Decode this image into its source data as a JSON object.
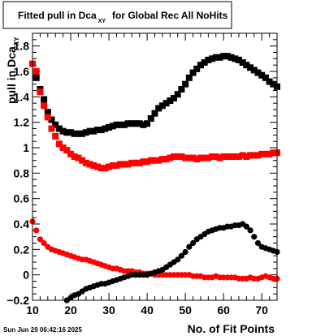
{
  "chart_data": {
    "type": "scatter",
    "title": "Fitted pull in Dca",
    "title_sub": "XY",
    "title_suffix": "for Global Rec All NoHits",
    "xlabel": "No. of Fit Points",
    "ylabel": "pull in Dca",
    "ylabel_sub": "XY",
    "xlim": [
      10,
      74
    ],
    "ylim": [
      -0.2,
      1.9
    ],
    "xticks": [
      10,
      20,
      30,
      40,
      50,
      60,
      70
    ],
    "xtick_labels": [
      "10",
      "20",
      "30",
      "40",
      "50",
      "60",
      "70"
    ],
    "yticks": [
      -0.2,
      0,
      0.2,
      0.4,
      0.6,
      0.8,
      1,
      1.2,
      1.4,
      1.6,
      1.8
    ],
    "ytick_labels": [
      "−0.2",
      "0",
      "0.2",
      "0.4",
      "0.6",
      "0.8",
      "1",
      "1.2",
      "1.4",
      "1.6",
      "1.8"
    ],
    "grid": false,
    "timestamp": "Sun Jun 29 06:42:16 2025",
    "colors": {
      "red": "#ff0000",
      "black": "#000000"
    },
    "series": [
      {
        "marker": "square",
        "color": "#000000",
        "x": [
          11,
          12,
          13,
          14,
          15,
          16,
          17,
          18,
          19,
          20,
          21,
          22,
          23,
          24,
          25,
          26,
          27,
          28,
          29,
          30,
          31,
          32,
          33,
          34,
          35,
          36,
          37,
          38,
          39,
          40,
          41,
          42,
          43,
          44,
          45,
          46,
          47,
          48,
          49,
          50,
          51,
          52,
          53,
          54,
          55,
          56,
          57,
          58,
          59,
          60,
          61,
          62,
          63,
          64,
          65,
          66,
          67,
          68,
          69,
          70,
          71,
          72,
          73,
          74
        ],
        "y": [
          1.55,
          1.46,
          1.38,
          1.28,
          1.22,
          1.18,
          1.15,
          1.13,
          1.12,
          1.12,
          1.11,
          1.11,
          1.11,
          1.12,
          1.13,
          1.13,
          1.14,
          1.14,
          1.15,
          1.16,
          1.17,
          1.18,
          1.18,
          1.18,
          1.19,
          1.19,
          1.19,
          1.19,
          1.18,
          1.19,
          1.23,
          1.27,
          1.31,
          1.33,
          1.35,
          1.37,
          1.39,
          1.42,
          1.46,
          1.5,
          1.55,
          1.59,
          1.62,
          1.65,
          1.67,
          1.69,
          1.7,
          1.71,
          1.71,
          1.72,
          1.72,
          1.71,
          1.7,
          1.69,
          1.67,
          1.65,
          1.63,
          1.61,
          1.59,
          1.57,
          1.55,
          1.52,
          1.5,
          1.48
        ]
      },
      {
        "marker": "square",
        "color": "#ff0000",
        "x": [
          10,
          11,
          12,
          13,
          14,
          15,
          16,
          17,
          18,
          19,
          20,
          21,
          22,
          23,
          24,
          25,
          26,
          27,
          28,
          29,
          30,
          31,
          32,
          33,
          34,
          35,
          36,
          37,
          38,
          39,
          40,
          41,
          42,
          43,
          44,
          45,
          46,
          47,
          48,
          49,
          50,
          51,
          52,
          53,
          54,
          55,
          56,
          57,
          58,
          59,
          60,
          61,
          62,
          63,
          64,
          65,
          66,
          67,
          68,
          69,
          70,
          71,
          72,
          73,
          74
        ],
        "y": [
          1.66,
          1.6,
          1.44,
          1.33,
          1.24,
          1.15,
          1.09,
          1.03,
          1.0,
          0.98,
          0.95,
          0.93,
          0.92,
          0.9,
          0.88,
          0.87,
          0.86,
          0.85,
          0.84,
          0.84,
          0.85,
          0.86,
          0.86,
          0.87,
          0.87,
          0.87,
          0.88,
          0.88,
          0.88,
          0.89,
          0.89,
          0.9,
          0.9,
          0.9,
          0.91,
          0.91,
          0.92,
          0.93,
          0.93,
          0.93,
          0.92,
          0.92,
          0.92,
          0.91,
          0.92,
          0.92,
          0.92,
          0.93,
          0.93,
          0.92,
          0.93,
          0.93,
          0.93,
          0.93,
          0.93,
          0.94,
          0.93,
          0.94,
          0.94,
          0.94,
          0.95,
          0.95,
          0.95,
          0.96,
          0.96
        ]
      },
      {
        "marker": "circle",
        "color": "#ff0000",
        "x": [
          10,
          11,
          12,
          13,
          14,
          15,
          16,
          17,
          18,
          19,
          20,
          21,
          22,
          23,
          24,
          25,
          26,
          27,
          28,
          29,
          30,
          31,
          32,
          33,
          34,
          35,
          36,
          37,
          38,
          39,
          40,
          41,
          42,
          43,
          44,
          45,
          46,
          47,
          48,
          49,
          50,
          51,
          52,
          53,
          54,
          55,
          56,
          57,
          58,
          59,
          60,
          61,
          62,
          63,
          64,
          65,
          66,
          67,
          68,
          69,
          70,
          71,
          72,
          73,
          74
        ],
        "y": [
          0.42,
          0.35,
          0.28,
          0.25,
          0.22,
          0.2,
          0.19,
          0.18,
          0.17,
          0.16,
          0.15,
          0.14,
          0.13,
          0.12,
          0.12,
          0.11,
          0.1,
          0.09,
          0.08,
          0.07,
          0.06,
          0.05,
          0.05,
          0.04,
          0.03,
          0.03,
          0.03,
          0.02,
          0.02,
          0.01,
          0.01,
          0.01,
          0.0,
          0.0,
          0.0,
          0.0,
          0.0,
          0.0,
          0.0,
          0.0,
          0.0,
          0.0,
          -0.01,
          -0.01,
          -0.01,
          -0.02,
          -0.02,
          -0.02,
          -0.01,
          -0.02,
          -0.02,
          -0.02,
          -0.02,
          -0.02,
          -0.03,
          -0.03,
          -0.03,
          -0.02,
          -0.03,
          -0.03,
          -0.02,
          -0.01,
          -0.02,
          -0.03,
          -0.03
        ]
      },
      {
        "marker": "circle",
        "color": "#000000",
        "x": [
          19,
          20,
          21,
          22,
          23,
          24,
          25,
          26,
          27,
          28,
          29,
          30,
          31,
          32,
          33,
          34,
          35,
          36,
          37,
          38,
          39,
          40,
          41,
          42,
          43,
          44,
          45,
          46,
          47,
          48,
          49,
          50,
          51,
          52,
          53,
          54,
          55,
          56,
          57,
          58,
          59,
          60,
          61,
          62,
          63,
          64,
          65,
          66,
          67,
          68,
          69,
          70,
          71,
          72,
          73,
          74
        ],
        "y": [
          -0.2,
          -0.18,
          -0.16,
          -0.15,
          -0.13,
          -0.11,
          -0.1,
          -0.09,
          -0.08,
          -0.07,
          -0.07,
          -0.06,
          -0.05,
          -0.04,
          -0.03,
          -0.02,
          -0.01,
          0.0,
          0.0,
          0.0,
          0.0,
          0.0,
          0.01,
          0.02,
          0.03,
          0.04,
          0.06,
          0.08,
          0.1,
          0.12,
          0.15,
          0.18,
          0.22,
          0.25,
          0.28,
          0.3,
          0.32,
          0.34,
          0.35,
          0.36,
          0.37,
          0.37,
          0.38,
          0.38,
          0.39,
          0.39,
          0.4,
          0.38,
          0.35,
          0.3,
          0.25,
          0.22,
          0.21,
          0.2,
          0.19,
          0.18
        ]
      }
    ]
  }
}
